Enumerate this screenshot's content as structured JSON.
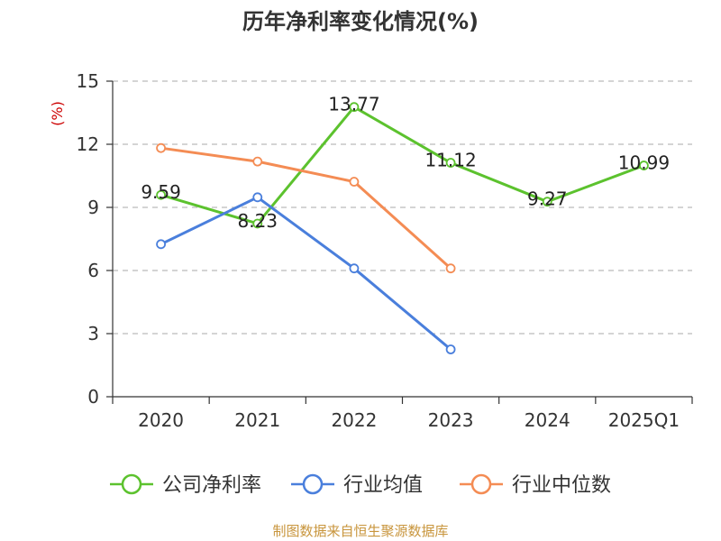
{
  "chart_data": {
    "type": "line",
    "title": "历年净利率变化情况(%)",
    "ylabel": "(%)",
    "xlabel": "",
    "categories": [
      "2020",
      "2021",
      "2022",
      "2023",
      "2024",
      "2025Q1"
    ],
    "ylim": [
      0,
      15
    ],
    "yticks": [
      0,
      3,
      6,
      9,
      12,
      15
    ],
    "grid": true,
    "legend_position": "bottom",
    "series": [
      {
        "name": "公司净利率",
        "color": "#5cc22e",
        "values": [
          9.59,
          8.23,
          13.77,
          11.12,
          9.27,
          10.99
        ],
        "show_labels": true
      },
      {
        "name": "行业均值",
        "color": "#4a7fdc",
        "values": [
          7.25,
          9.48,
          6.1,
          2.25,
          null,
          null
        ],
        "show_labels": false
      },
      {
        "name": "行业中位数",
        "color": "#f48c54",
        "values": [
          11.82,
          11.18,
          10.22,
          6.1,
          null,
          null
        ],
        "show_labels": false
      }
    ]
  },
  "footer": {
    "source": "制图数据来自恒生聚源数据库"
  }
}
